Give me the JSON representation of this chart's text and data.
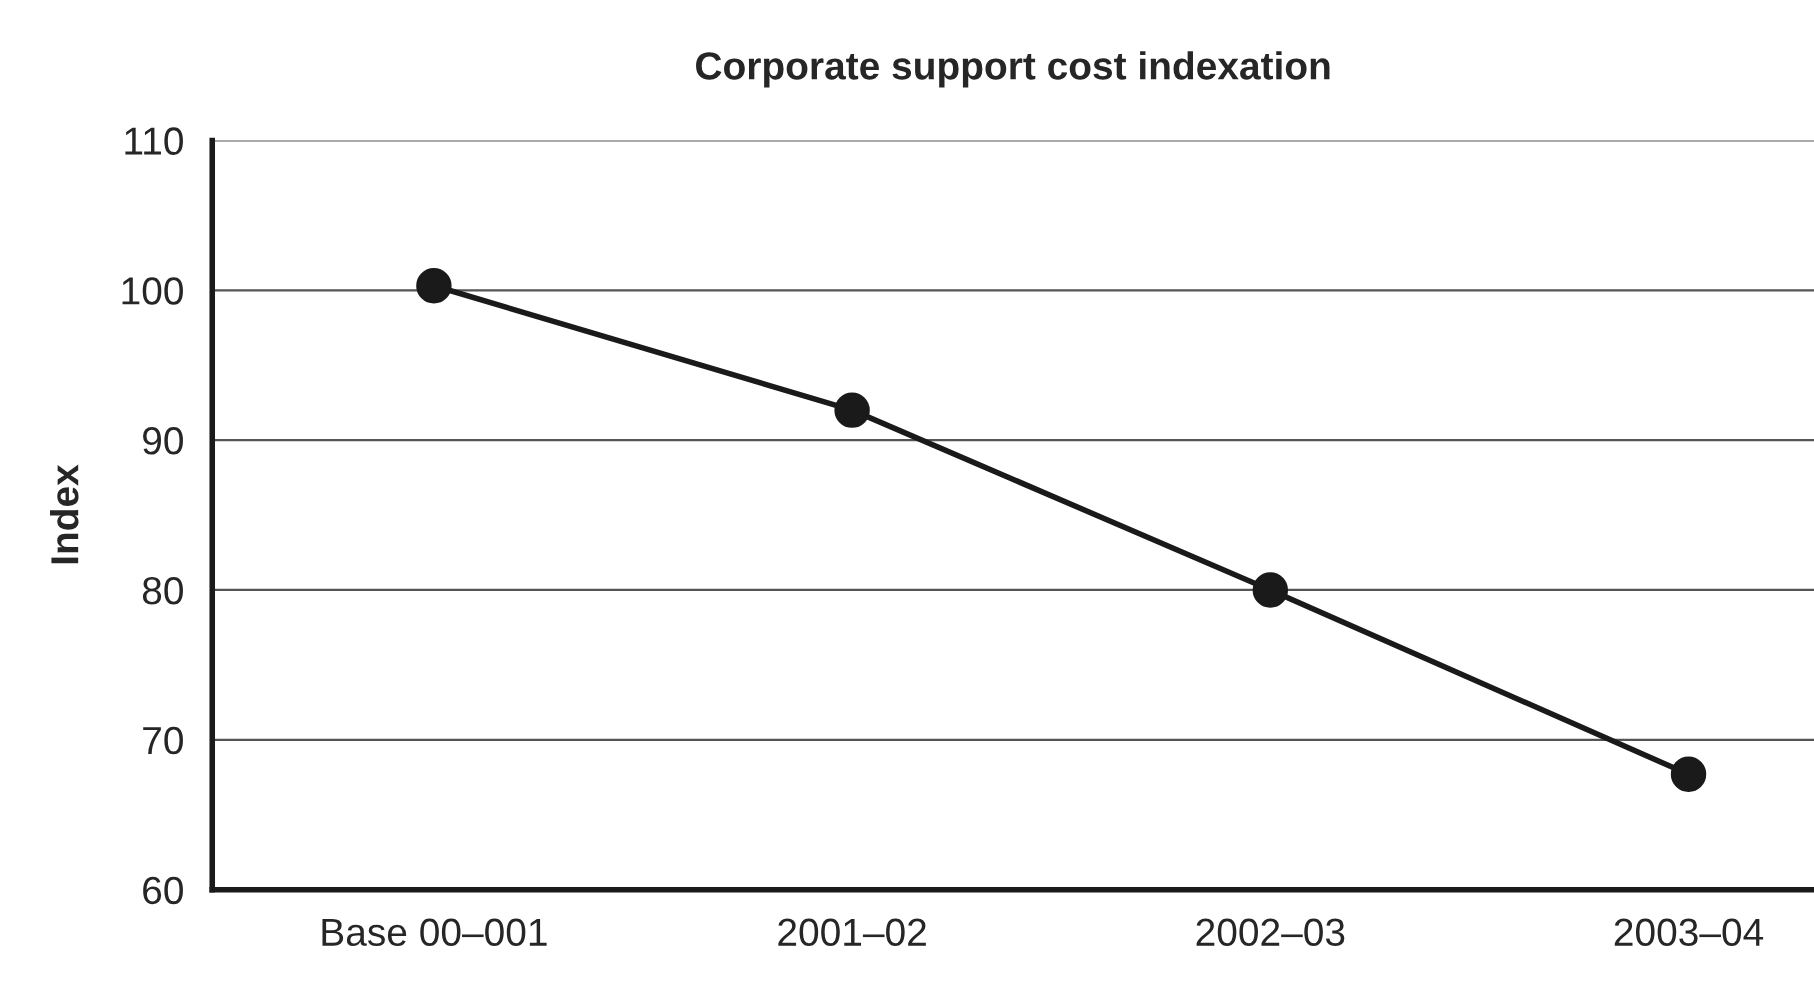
{
  "chart_data": {
    "type": "line",
    "title": "Corporate support cost indexation",
    "ylabel": "Index",
    "categories": [
      "Base 00–001",
      "2001–02",
      "2002–03",
      "2003–04"
    ],
    "series": [
      {
        "color": "#1a1a1a",
        "values": [
          100.3,
          92,
          80,
          67.7
        ]
      }
    ],
    "ylim": [
      60,
      110
    ],
    "yticks": [
      60,
      70,
      80,
      90,
      100,
      110
    ],
    "grid": "y",
    "marker": "circle",
    "line_style": "solid"
  }
}
